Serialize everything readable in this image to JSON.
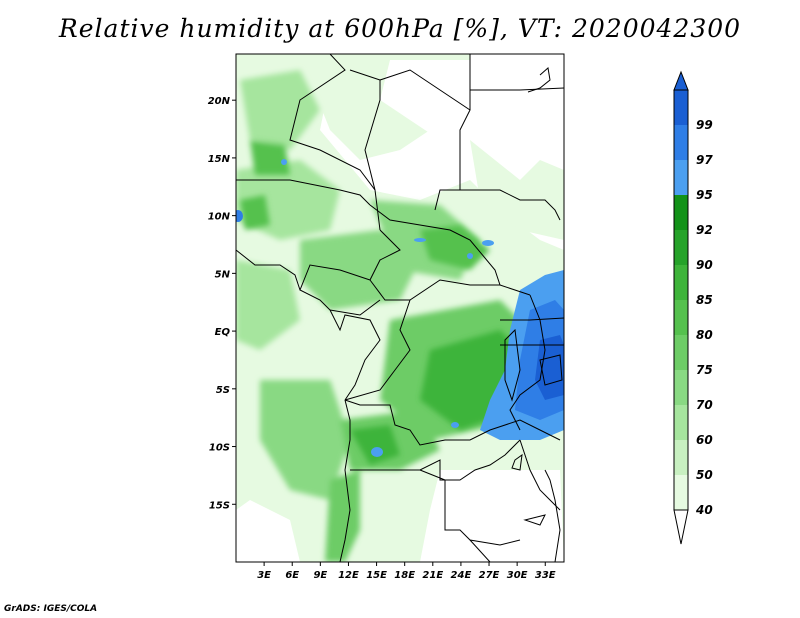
{
  "title": "Relative humidity at 600hPa [%], VT: 2020042300",
  "credit": "GrADS: IGES/COLA",
  "map": {
    "lon_range": [
      0,
      35
    ],
    "lat_range": [
      -20,
      24
    ],
    "lat_ticks": [
      {
        "value": 20,
        "label": "20N"
      },
      {
        "value": 15,
        "label": "15N"
      },
      {
        "value": 10,
        "label": "10N"
      },
      {
        "value": 5,
        "label": "5N"
      },
      {
        "value": 0,
        "label": "EQ"
      },
      {
        "value": -5,
        "label": "5S"
      },
      {
        "value": -10,
        "label": "10S"
      },
      {
        "value": -15,
        "label": "15S"
      }
    ],
    "lon_ticks": [
      {
        "value": 3,
        "label": "3E"
      },
      {
        "value": 6,
        "label": "6E"
      },
      {
        "value": 9,
        "label": "9E"
      },
      {
        "value": 12,
        "label": "12E"
      },
      {
        "value": 15,
        "label": "15E"
      },
      {
        "value": 18,
        "label": "18E"
      },
      {
        "value": 21,
        "label": "21E"
      },
      {
        "value": 24,
        "label": "24E"
      },
      {
        "value": 27,
        "label": "27E"
      },
      {
        "value": 30,
        "label": "30E"
      },
      {
        "value": 33,
        "label": "33E"
      }
    ]
  },
  "colorbar": {
    "levels": [
      "40",
      "50",
      "60",
      "70",
      "75",
      "80",
      "85",
      "90",
      "92",
      "95",
      "97",
      "99"
    ],
    "colors": [
      "#e6fae1",
      "#c8f0c1",
      "#a6e59e",
      "#89d983",
      "#6dcc66",
      "#55c14e",
      "#3eb43a",
      "#26a32a",
      "#129218",
      "#4b9ff0",
      "#2f7ee6",
      "#1a5fd3"
    ]
  }
}
